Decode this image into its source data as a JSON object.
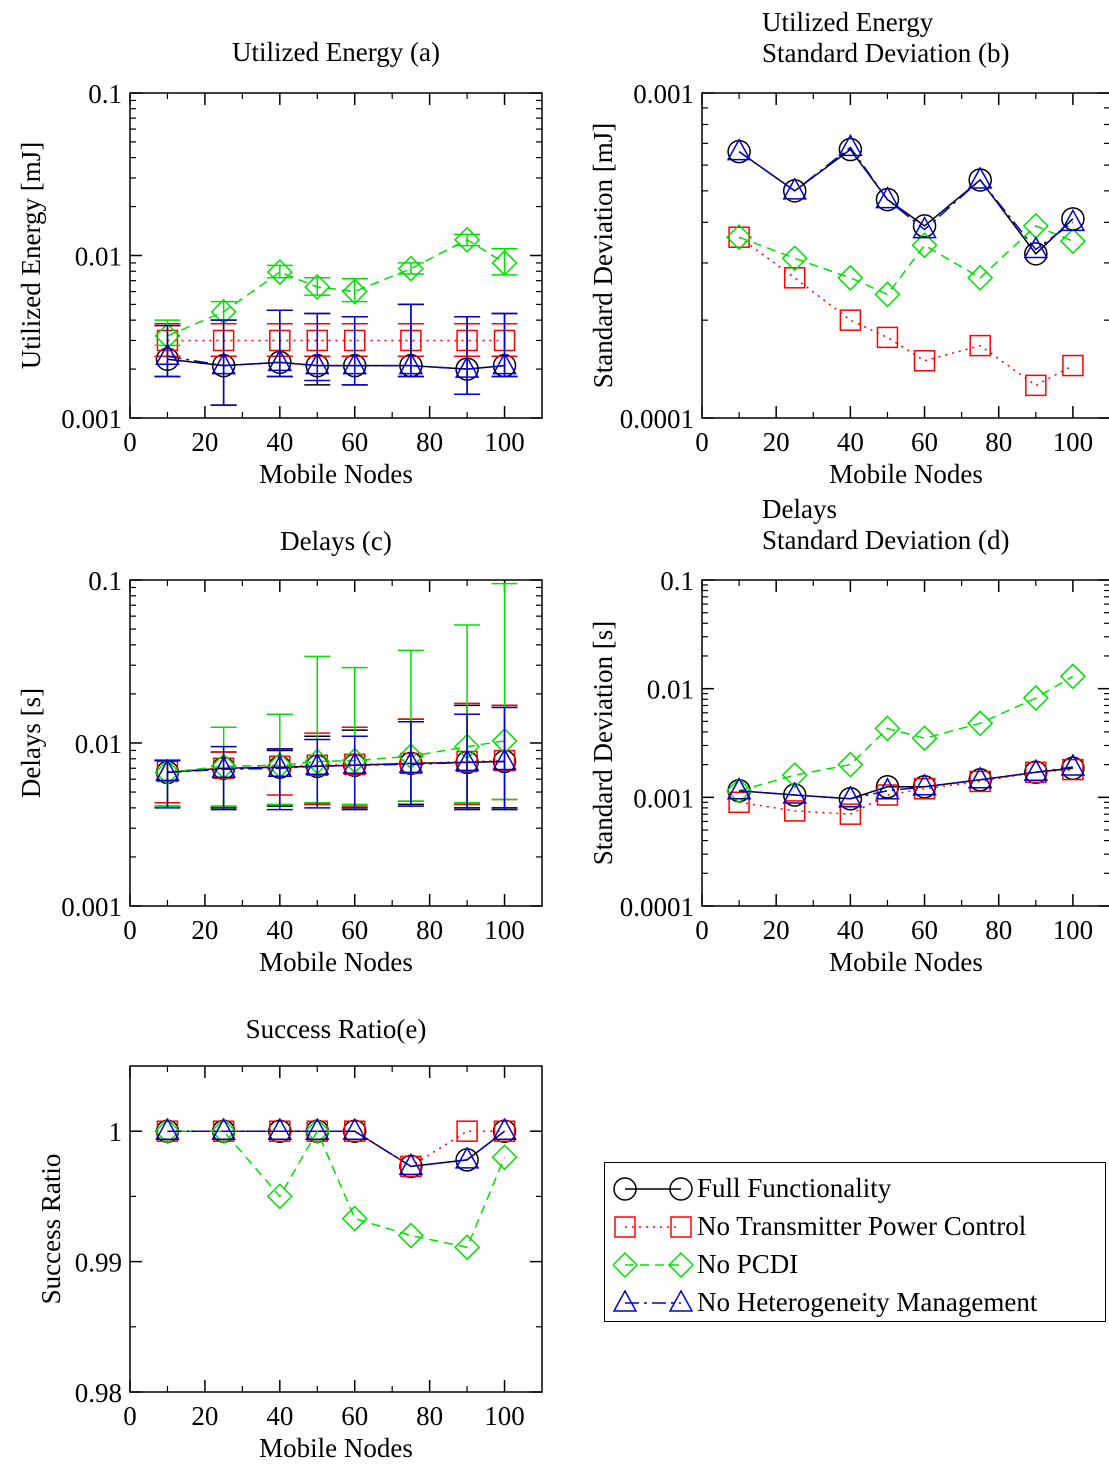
{
  "colors": {
    "full": "#000000",
    "no_tpc": "#ff0000",
    "no_pcdi": "#00e000",
    "no_hm": "#0000d0"
  },
  "legend": [
    {
      "key": "full",
      "label": "Full Functionality",
      "marker": "circle",
      "dash": ""
    },
    {
      "key": "no_tpc",
      "label": "No Transmitter Power Control",
      "marker": "square",
      "dash": "2,5"
    },
    {
      "key": "no_pcdi",
      "label": "No PCDI",
      "marker": "diamond",
      "dash": "9,6"
    },
    {
      "key": "no_hm",
      "label": "No Heterogeneity Management",
      "marker": "triangle",
      "dash": "14,5,3,5"
    }
  ],
  "chart_data": [
    {
      "id": "a",
      "type": "line",
      "title": "Utilized Energy (a)",
      "xlabel": "Mobile Nodes",
      "ylabel": "Utilized Energy [mJ]",
      "yscale": "log",
      "xlim": [
        0,
        110
      ],
      "ylim": [
        0.001,
        0.1
      ],
      "xticks": [
        "0",
        "20",
        "40",
        "60",
        "80",
        "100"
      ],
      "yticks": [
        "0.001",
        "0.01",
        "0.1"
      ],
      "x": [
        10,
        25,
        40,
        50,
        60,
        75,
        90,
        100
      ],
      "series": [
        {
          "key": "full",
          "values": [
            0.0023,
            0.0021,
            0.0022,
            0.0021,
            0.0021,
            0.0021,
            0.002,
            0.0021
          ],
          "err_low": [
            0.0018,
            0.0012,
            0.0018,
            0.0016,
            0.0016,
            0.0018,
            0.0014,
            0.0018
          ],
          "err_high": [
            0.0038,
            0.004,
            0.0046,
            0.0044,
            0.0042,
            0.005,
            0.0042,
            0.0044
          ]
        },
        {
          "key": "no_tpc",
          "values": [
            0.003,
            0.003,
            0.003,
            0.003,
            0.003,
            0.003,
            0.003,
            0.003
          ],
          "err_low": [
            0.0024,
            0.0024,
            0.0024,
            0.0024,
            0.0024,
            0.0024,
            0.0024,
            0.0024
          ],
          "err_high": [
            0.0038,
            0.0038,
            0.0038,
            0.0038,
            0.0038,
            0.0038,
            0.0038,
            0.0038
          ]
        },
        {
          "key": "no_pcdi",
          "values": [
            0.0032,
            0.0045,
            0.0079,
            0.0064,
            0.006,
            0.0083,
            0.0125,
            0.009
          ],
          "err_low": [
            0.0028,
            0.004,
            0.0073,
            0.0057,
            0.0052,
            0.0077,
            0.0115,
            0.0076
          ],
          "err_high": [
            0.004,
            0.0052,
            0.0087,
            0.0073,
            0.0072,
            0.009,
            0.0135,
            0.011
          ]
        },
        {
          "key": "no_hm",
          "values": [
            0.0024,
            0.0021,
            0.0022,
            0.0021,
            0.0021,
            0.0021,
            0.002,
            0.0021
          ],
          "err_low": [
            0.0018,
            0.0012,
            0.0018,
            0.0017,
            0.0016,
            0.0018,
            0.0014,
            0.0018
          ],
          "err_high": [
            0.0037,
            0.004,
            0.0046,
            0.0044,
            0.0042,
            0.005,
            0.0042,
            0.0044
          ]
        }
      ]
    },
    {
      "id": "b",
      "type": "line",
      "title": [
        "Utilized Energy",
        "Standard Deviation (b)"
      ],
      "xlabel": "Mobile Nodes",
      "ylabel": "Standard Deviation [mJ]",
      "yscale": "log",
      "xlim": [
        0,
        110
      ],
      "ylim": [
        0.0001,
        0.001
      ],
      "xticks": [
        "0",
        "20",
        "40",
        "60",
        "80",
        "100"
      ],
      "yticks": [
        "0.0001",
        "0.001"
      ],
      "x": [
        10,
        25,
        40,
        50,
        60,
        75,
        90,
        100
      ],
      "series": [
        {
          "key": "full",
          "values": [
            0.00066,
            0.0005,
            0.00067,
            0.00047,
            0.00039,
            0.00054,
            0.00032,
            0.00041
          ]
        },
        {
          "key": "no_tpc",
          "values": [
            0.00036,
            0.00027,
            0.0002,
            0.000177,
            0.00015,
            0.000167,
            0.000126,
            0.000145
          ]
        },
        {
          "key": "no_pcdi",
          "values": [
            0.00036,
            0.00031,
            0.00027,
            0.00024,
            0.00034,
            0.00027,
            0.00039,
            0.00035
          ]
        },
        {
          "key": "no_hm",
          "values": [
            0.00066,
            0.0005,
            0.00068,
            0.00047,
            0.00038,
            0.00054,
            0.00033,
            0.0004
          ]
        }
      ]
    },
    {
      "id": "c",
      "type": "line",
      "title": "Delays (c)",
      "xlabel": "Mobile Nodes",
      "ylabel": "Delays [s]",
      "yscale": "log",
      "xlim": [
        0,
        110
      ],
      "ylim": [
        0.001,
        0.1
      ],
      "xticks": [
        "0",
        "20",
        "40",
        "60",
        "80",
        "100"
      ],
      "yticks": [
        "0.001",
        "0.01",
        "0.1"
      ],
      "x": [
        10,
        25,
        40,
        50,
        60,
        75,
        90,
        100
      ],
      "series": [
        {
          "key": "full",
          "values": [
            0.0066,
            0.007,
            0.0071,
            0.0072,
            0.0073,
            0.0075,
            0.0076,
            0.0077
          ],
          "err_low": [
            0.0041,
            0.004,
            0.0041,
            0.0042,
            0.004,
            0.0042,
            0.004,
            0.004
          ],
          "err_high": [
            0.0078,
            0.0088,
            0.009,
            0.011,
            0.012,
            0.014,
            0.017,
            0.017
          ]
        },
        {
          "key": "no_tpc",
          "values": [
            0.0067,
            0.007,
            0.0072,
            0.0073,
            0.0074,
            0.0075,
            0.0077,
            0.0078
          ],
          "err_low": [
            0.0043,
            0.0041,
            0.0048,
            0.0042,
            0.0041,
            0.0044,
            0.0042,
            0.0045
          ],
          "err_high": [
            0.0078,
            0.0088,
            0.0092,
            0.0115,
            0.0125,
            0.014,
            0.0175,
            0.017
          ]
        },
        {
          "key": "no_pcdi",
          "values": [
            0.0066,
            0.0072,
            0.0073,
            0.0077,
            0.0078,
            0.0083,
            0.0095,
            0.0103
          ],
          "err_low": [
            0.0041,
            0.0041,
            0.0042,
            0.0043,
            0.0042,
            0.0044,
            0.0043,
            0.0045
          ],
          "err_high": [
            0.0079,
            0.0125,
            0.015,
            0.034,
            0.029,
            0.037,
            0.053,
            0.095
          ]
        },
        {
          "key": "no_hm",
          "values": [
            0.0066,
            0.0069,
            0.007,
            0.0072,
            0.0073,
            0.0074,
            0.0076,
            0.0077
          ],
          "err_low": [
            0.004,
            0.0039,
            0.0039,
            0.004,
            0.0039,
            0.0041,
            0.0039,
            0.0039
          ],
          "err_high": [
            0.0078,
            0.0095,
            0.0092,
            0.0105,
            0.011,
            0.0135,
            0.015,
            0.0165
          ]
        }
      ]
    },
    {
      "id": "d",
      "type": "line",
      "title": [
        "Delays",
        "Standard Deviation (d)"
      ],
      "xlabel": "Mobile Nodes",
      "ylabel": "Standard Deviation [s]",
      "yscale": "log",
      "xlim": [
        0,
        110
      ],
      "ylim": [
        0.0001,
        0.1
      ],
      "xticks": [
        "0",
        "20",
        "40",
        "60",
        "80",
        "100"
      ],
      "yticks": [
        "0.0001",
        "0.001",
        "0.01",
        "0.1"
      ],
      "x": [
        10,
        25,
        40,
        50,
        60,
        75,
        90,
        100
      ],
      "series": [
        {
          "key": "full",
          "values": [
            0.00115,
            0.00105,
            0.00097,
            0.00125,
            0.00125,
            0.00145,
            0.0017,
            0.00185
          ]
        },
        {
          "key": "no_tpc",
          "values": [
            0.0009,
            0.00075,
            0.0007,
            0.00105,
            0.0012,
            0.0014,
            0.0017,
            0.0018
          ]
        },
        {
          "key": "no_pcdi",
          "values": [
            0.00115,
            0.0016,
            0.002,
            0.0043,
            0.0035,
            0.0048,
            0.0082,
            0.013
          ]
        },
        {
          "key": "no_hm",
          "values": [
            0.00115,
            0.00105,
            0.00097,
            0.00115,
            0.00125,
            0.00145,
            0.0017,
            0.0019
          ]
        }
      ]
    },
    {
      "id": "e",
      "type": "line",
      "title": "Success Ratio(e)",
      "xlabel": "Mobile Nodes",
      "ylabel": "Success Ratio",
      "yscale": "linear",
      "xlim": [
        0,
        110
      ],
      "ylim": [
        0.98,
        1.005
      ],
      "xticks": [
        "0",
        "20",
        "40",
        "60",
        "80",
        "100"
      ],
      "yticks": [
        "0.98",
        "0.99",
        "1"
      ],
      "x": [
        10,
        25,
        40,
        50,
        60,
        75,
        90,
        100
      ],
      "series": [
        {
          "key": "full",
          "values": [
            1.0,
            1.0,
            1.0,
            1.0,
            1.0,
            0.9973,
            0.9978,
            1.0
          ]
        },
        {
          "key": "no_tpc",
          "values": [
            1.0,
            1.0,
            1.0,
            1.0,
            1.0,
            0.9973,
            1.0,
            1.0
          ]
        },
        {
          "key": "no_pcdi",
          "values": [
            1.0,
            1.0,
            0.995,
            1.0,
            0.9933,
            0.992,
            0.9911,
            0.998
          ]
        },
        {
          "key": "no_hm",
          "values": [
            1.0,
            1.0,
            1.0,
            1.0,
            1.0,
            0.9973,
            0.9978,
            1.0
          ]
        }
      ]
    }
  ]
}
